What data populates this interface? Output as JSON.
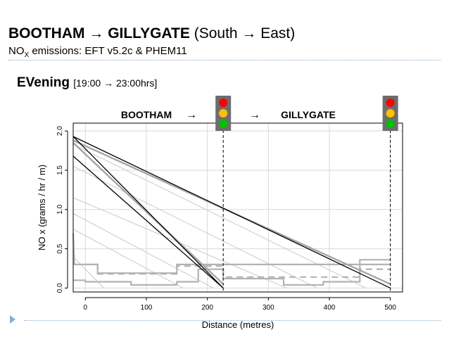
{
  "header": {
    "title_bold": "BOOTHAM",
    "title_arrow": "→",
    "title_bold2": "GILLYGATE",
    "title_rest": " (South → East)",
    "subtitle_prefix": "NO",
    "subtitle_sub": "X",
    "subtitle_rest": " emissions: EFT v5.2c & PHEM11"
  },
  "section": {
    "label_bold": "EVening",
    "label_time": "[19:00 → 23:00hrs]"
  },
  "chart_data": {
    "type": "line",
    "xlabel": "Distance (metres)",
    "ylabel": "NO x (grams / hr / m)",
    "xlim": [
      -20,
      520
    ],
    "ylim": [
      -0.05,
      2.1
    ],
    "xticks": [
      "0",
      "100",
      "200",
      "300",
      "400",
      "500"
    ],
    "yticks": [
      "0.0",
      "0.5",
      "1.0",
      "1.5",
      "2.0"
    ],
    "grid": true,
    "junction_labels": {
      "left": "BOOTHAM",
      "arrow_left": "→",
      "arrow_right": "→",
      "right": "GILLYGATE"
    },
    "junctions_x": [
      226,
      500
    ],
    "traffic_light_colors": [
      "#ff0000",
      "#ffc000",
      "#00c000"
    ],
    "series": [
      {
        "style": "black",
        "x": [
          -20,
          226
        ],
        "y": [
          1.93,
          0.0
        ]
      },
      {
        "style": "black",
        "x": [
          -20,
          500
        ],
        "y": [
          1.93,
          0.0
        ]
      },
      {
        "style": "black",
        "x": [
          -20,
          226
        ],
        "y": [
          1.68,
          0.0
        ]
      },
      {
        "style": "gray-thick",
        "x": [
          -20,
          500
        ],
        "y": [
          1.88,
          0.05
        ]
      },
      {
        "style": "gray-thick",
        "x": [
          -20,
          226
        ],
        "y": [
          1.85,
          0.05
        ]
      },
      {
        "style": "gray-thin",
        "x": [
          -20,
          460
        ],
        "y": [
          1.83,
          0.0
        ]
      },
      {
        "style": "gray-thin",
        "x": [
          -20,
          380
        ],
        "y": [
          1.55,
          0.0
        ]
      },
      {
        "style": "gray-thin",
        "x": [
          -20,
          330
        ],
        "y": [
          1.15,
          0.0
        ]
      },
      {
        "style": "gray-thin",
        "x": [
          -20,
          210
        ],
        "y": [
          0.95,
          0.0
        ]
      },
      {
        "style": "gray-thin",
        "x": [
          -20,
          160
        ],
        "y": [
          0.75,
          0.0
        ]
      },
      {
        "style": "gray-thin",
        "x": [
          -20,
          30
        ],
        "y": [
          0.4,
          0.0
        ]
      },
      {
        "style": "gray-step",
        "x": [
          -20,
          -18,
          0,
          0,
          20,
          20,
          150,
          150,
          226,
          226,
          500
        ],
        "y": [
          0.7,
          0.3,
          0.3,
          0.3,
          0.3,
          0.19,
          0.19,
          0.3,
          0.3,
          0.3,
          0.3
        ]
      },
      {
        "style": "gray-dashed",
        "x": [
          0,
          20,
          20,
          150,
          150,
          226,
          226,
          450,
          450,
          500
        ],
        "y": [
          0.3,
          0.3,
          0.18,
          0.18,
          0.28,
          0.28,
          0.14,
          0.14,
          0.24,
          0.24
        ]
      },
      {
        "style": "gray-step",
        "x": [
          -20,
          0,
          0,
          75,
          75,
          150,
          150,
          185,
          185,
          226,
          226,
          325,
          325,
          390,
          390,
          450,
          450,
          500
        ],
        "y": [
          0.1,
          0.1,
          0.08,
          0.08,
          0.04,
          0.04,
          0.08,
          0.08,
          0.24,
          0.24,
          0.12,
          0.12,
          0.04,
          0.04,
          0.08,
          0.08,
          0.36,
          0.36
        ]
      }
    ]
  }
}
